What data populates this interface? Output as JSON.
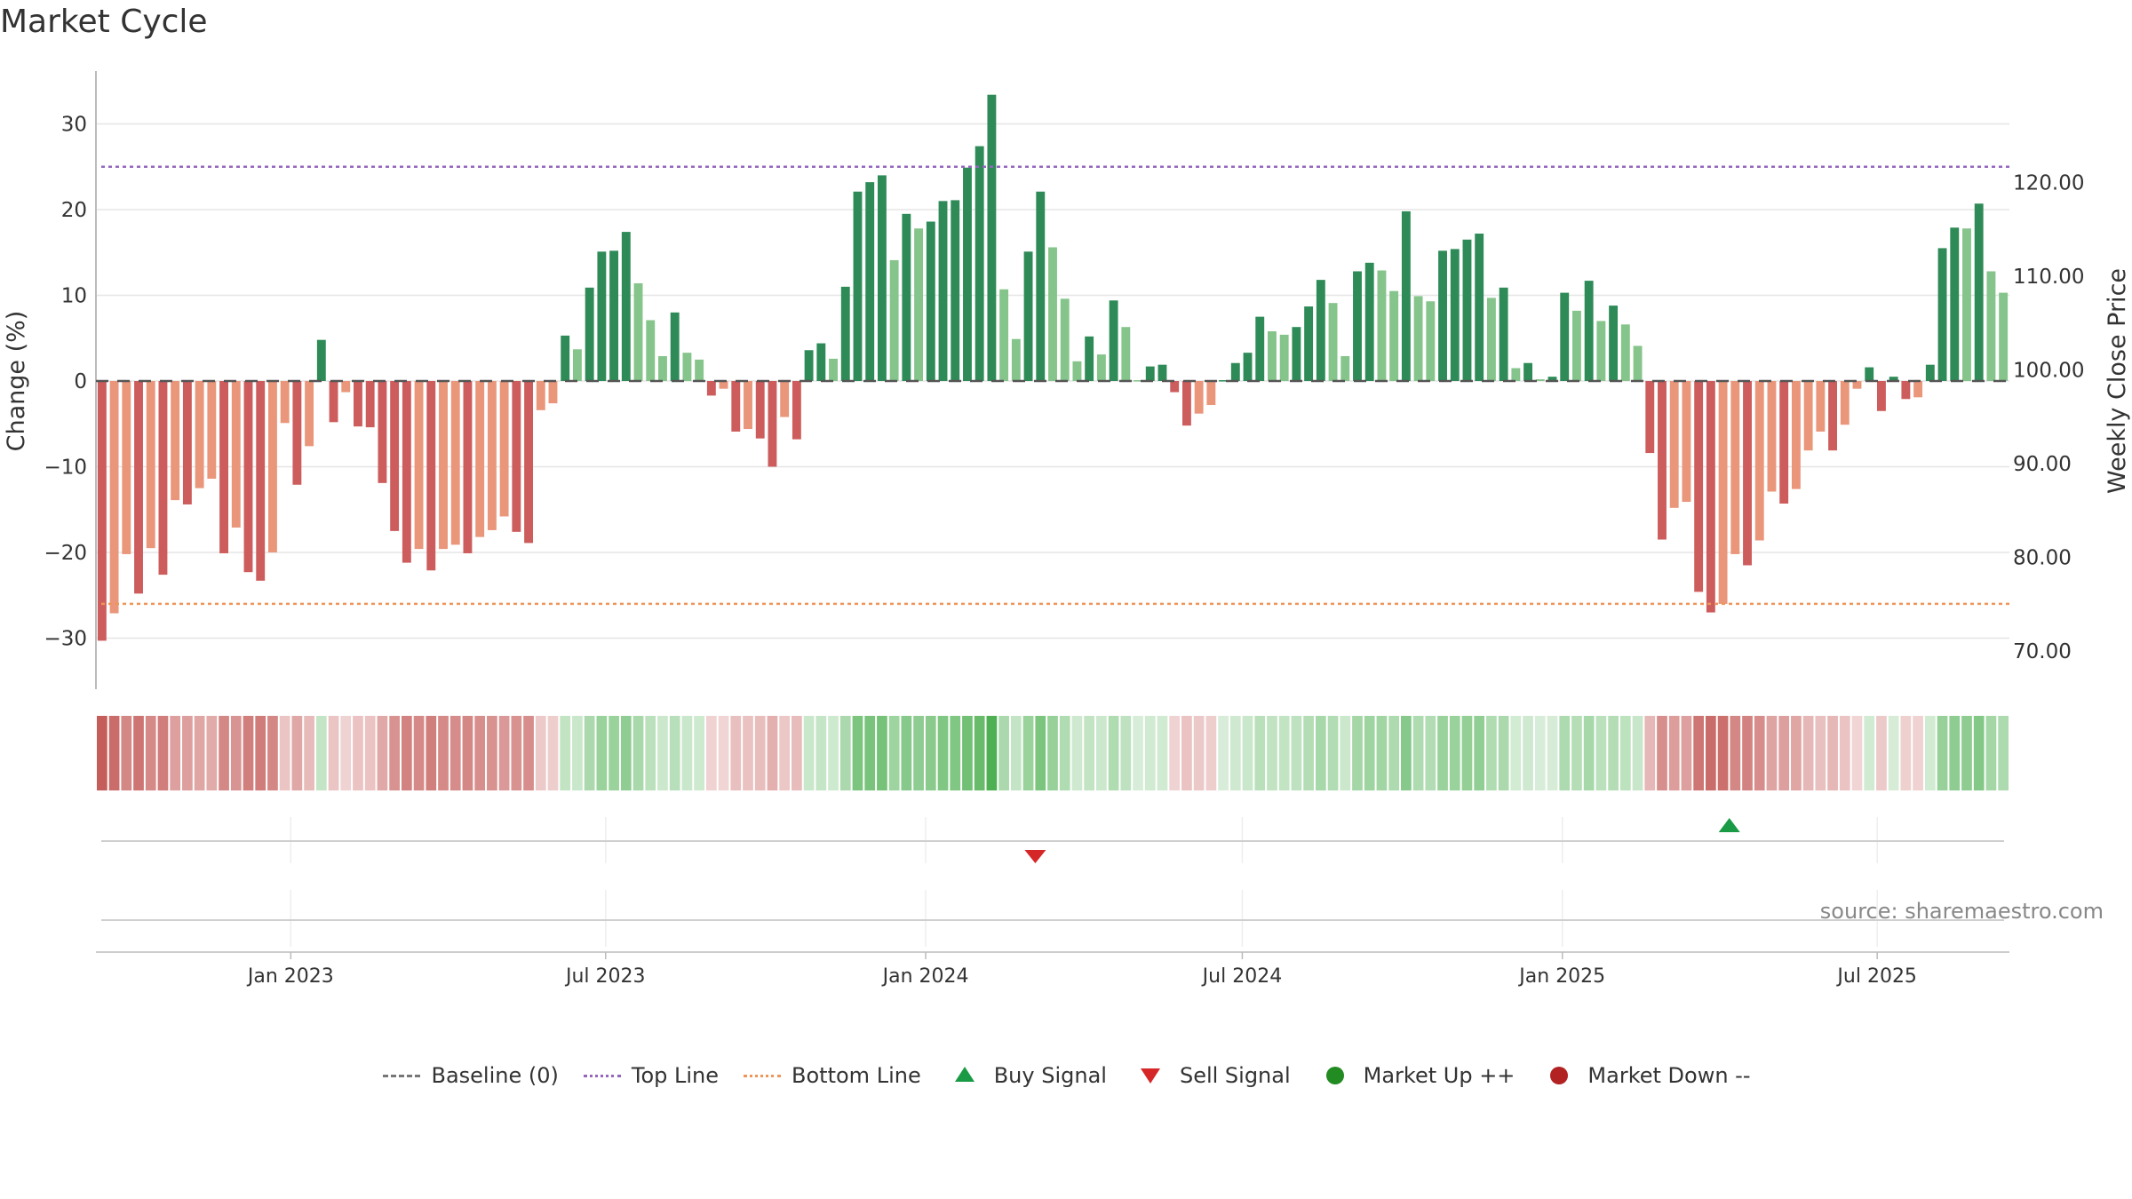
{
  "title": "Market Cycle",
  "source": "source: sharemaestro.com",
  "colors": {
    "up_dark": "#2e8b57",
    "up_light": "#85c48a",
    "down_dark": "#cd5c5c",
    "down_light": "#e9967a",
    "top_line": "#9467bd",
    "bottom_line": "#f0955a",
    "buy": "#1a9a45",
    "sell": "#d62728",
    "market_up": "#228b22",
    "market_down": "#b22222"
  },
  "legend": [
    {
      "label": "Baseline (0)",
      "symbol": "dashed-line-icon"
    },
    {
      "label": "Top Line",
      "symbol": "dotted-purple-line-icon"
    },
    {
      "label": "Bottom Line",
      "symbol": "dotted-orange-line-icon"
    },
    {
      "label": "Buy Signal",
      "symbol": "triangle-up-icon"
    },
    {
      "label": "Sell Signal",
      "symbol": "triangle-down-icon"
    },
    {
      "label": "Market Up ++",
      "symbol": "green-dot-icon"
    },
    {
      "label": "Market Down --",
      "symbol": "red-dot-icon"
    }
  ],
  "chart_data": {
    "type": "bar",
    "title": "Market Cycle",
    "ylabel": "Change (%)",
    "y2label": "Weekly Close Price",
    "ylim": [
      -36,
      36
    ],
    "y2lim": [
      62.5,
      127.8
    ],
    "yticks": [
      30,
      20,
      10,
      0,
      -10,
      -20,
      -30
    ],
    "ytick_labels": [
      "30",
      "20",
      "10",
      "0",
      "−10",
      "−20",
      "−30"
    ],
    "y2ticks": [
      120,
      110,
      100,
      90,
      80,
      70
    ],
    "y2tick_labels": [
      "120.00",
      "110.00",
      "100.00",
      "90.00",
      "80.00",
      "70.00"
    ],
    "top_line": 25,
    "bottom_line": -26,
    "x_start": "2022-09-11",
    "x_end": "2025-09-15",
    "xtick_dates": [
      "2023-01-01",
      "2023-07-01",
      "2024-01-01",
      "2024-07-01",
      "2025-01-01",
      "2025-07-01"
    ],
    "xtick_labels": [
      "Jan 2023",
      "Jul 2023",
      "Jan 2024",
      "Jul 2024",
      "Jan 2025",
      "Jul 2025"
    ],
    "grid": true,
    "legend_position": "bottom",
    "values": [
      -30.3,
      -27.1,
      -20.2,
      -24.8,
      -19.5,
      -22.6,
      -13.9,
      -14.4,
      -12.5,
      -11.4,
      -20.1,
      -17.1,
      -22.3,
      -23.3,
      -20.0,
      -4.9,
      -12.1,
      -7.6,
      4.8,
      -4.8,
      -1.3,
      -5.3,
      -5.4,
      -11.9,
      -17.5,
      -21.2,
      -19.6,
      -22.1,
      -19.6,
      -19.1,
      -20.1,
      -18.2,
      -17.4,
      -15.8,
      -17.6,
      -18.9,
      -3.4,
      -2.6,
      5.3,
      3.7,
      10.9,
      15.1,
      15.2,
      17.4,
      11.4,
      7.1,
      2.9,
      8.0,
      3.3,
      2.5,
      -1.7,
      -0.9,
      -5.9,
      -5.6,
      -6.7,
      -10.0,
      -4.2,
      -6.8,
      3.6,
      4.4,
      2.6,
      11.0,
      22.1,
      23.2,
      24.0,
      14.1,
      19.5,
      17.8,
      18.6,
      21.0,
      21.1,
      24.9,
      27.4,
      33.4,
      10.7,
      4.9,
      15.1,
      22.1,
      15.6,
      9.6,
      2.3,
      5.2,
      3.1,
      9.4,
      6.3,
      0.1,
      1.7,
      1.9,
      -1.3,
      -5.2,
      -3.8,
      -2.8,
      0.1,
      2.1,
      3.3,
      7.5,
      5.8,
      5.4,
      6.3,
      8.7,
      11.8,
      9.1,
      2.9,
      12.8,
      13.8,
      12.9,
      10.5,
      19.8,
      9.9,
      9.3,
      15.2,
      15.4,
      16.5,
      17.2,
      9.7,
      10.9,
      1.5,
      2.1,
      0.2,
      0.5,
      10.3,
      8.2,
      11.7,
      7.0,
      8.8,
      6.6,
      4.1,
      -8.4,
      -18.5,
      -14.8,
      -14.1,
      -24.6,
      -27.0,
      -26.0,
      -20.2,
      -21.5,
      -18.6,
      -12.9,
      -14.3,
      -12.6,
      -8.1,
      -5.9,
      -8.1,
      -5.1,
      -0.9,
      1.6,
      -3.5,
      0.5,
      -2.1,
      -1.9,
      1.9,
      15.5,
      17.9,
      17.8,
      20.7,
      12.8,
      10.3
    ],
    "heat_strip": {
      "label_note": "weekly intensity strip, value = bar change %"
    },
    "signals": [
      {
        "type": "sell",
        "date": "2024-03-04"
      },
      {
        "type": "buy",
        "date": "2025-04-07"
      }
    ]
  }
}
